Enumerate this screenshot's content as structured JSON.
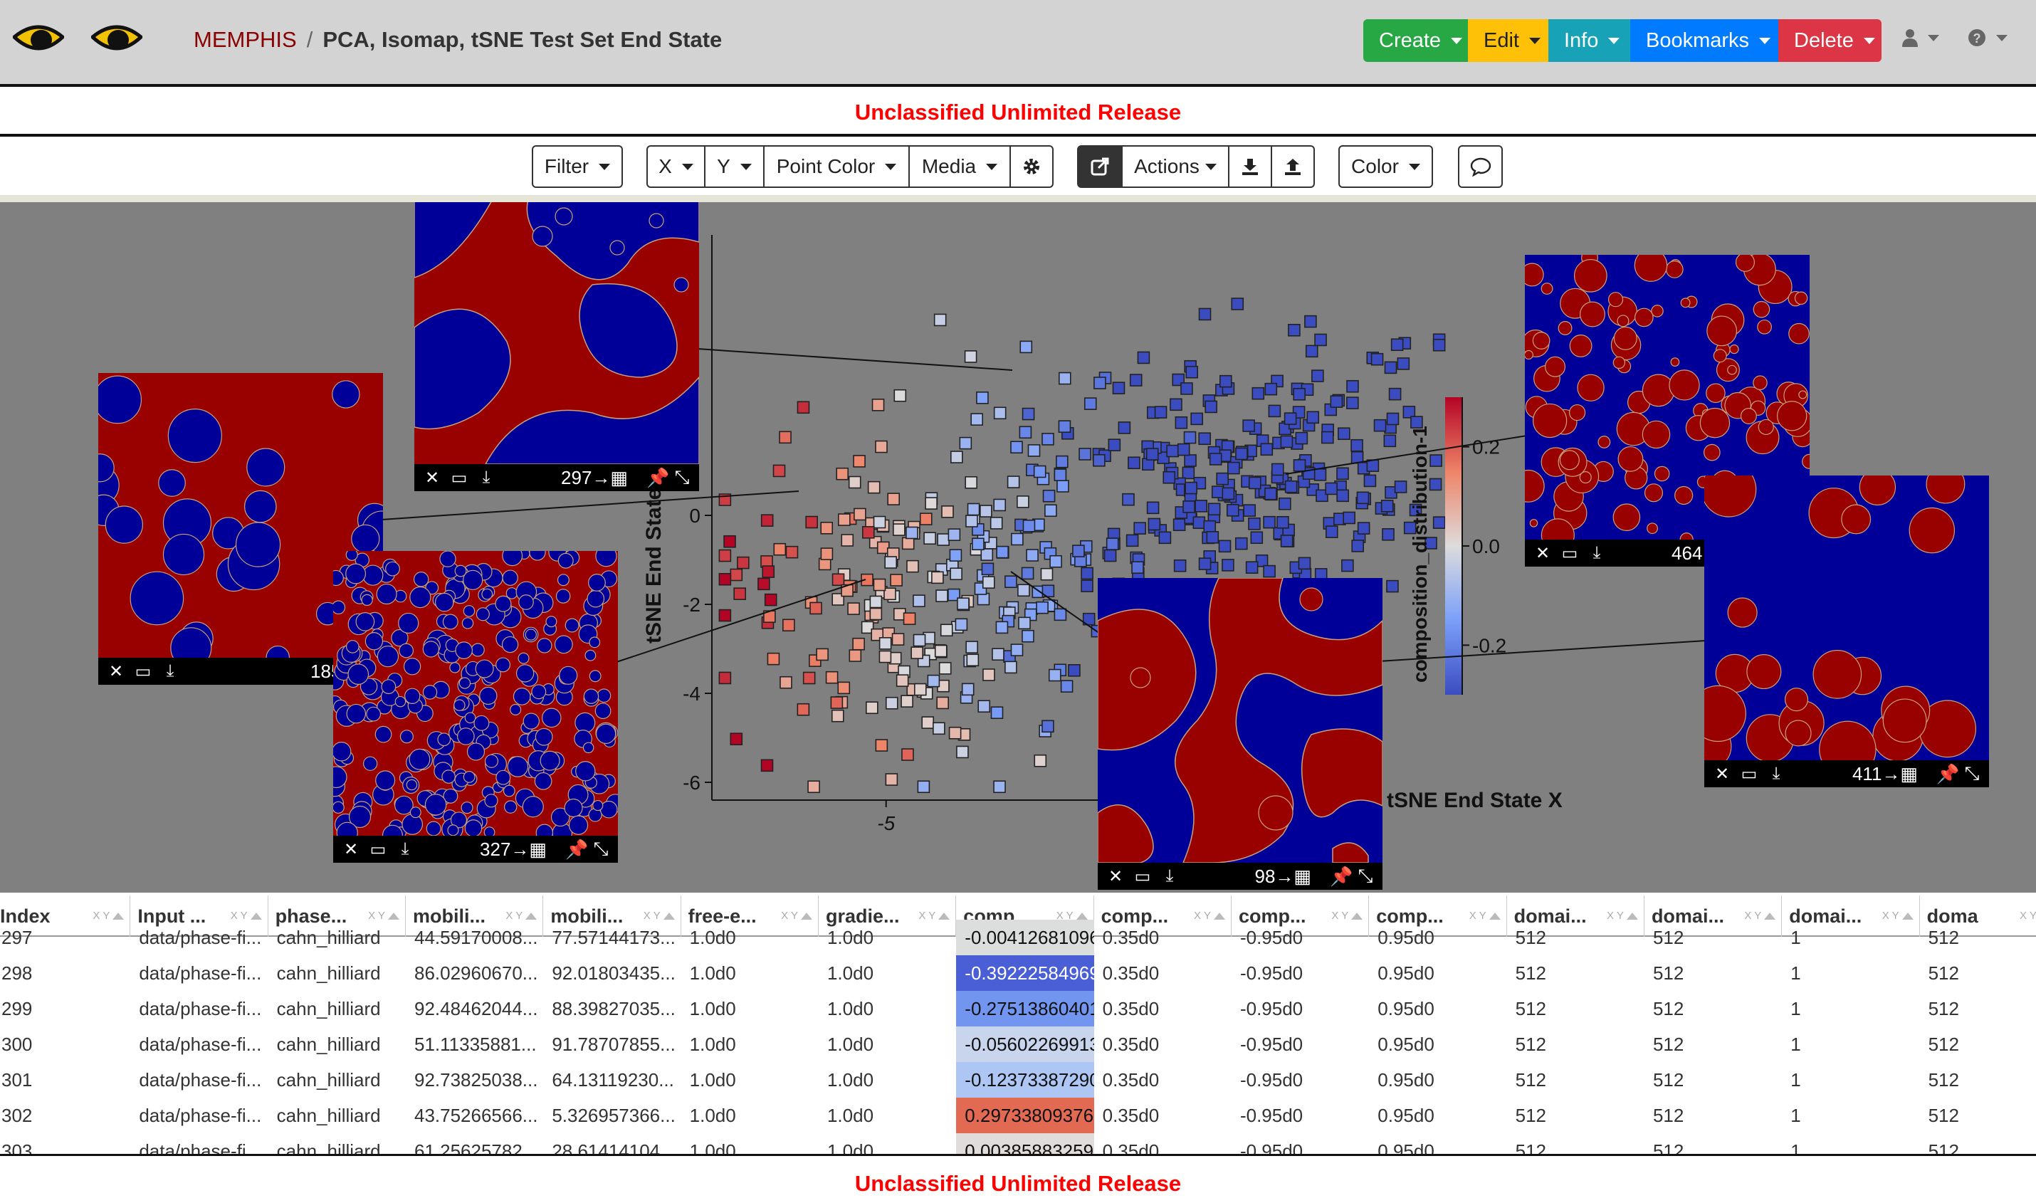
{
  "header": {
    "project": "MEMPHIS",
    "separator": "/",
    "model": "PCA, Isomap, tSNE Test Set End State",
    "buttons": {
      "create": "Create",
      "edit": "Edit",
      "info": "Info",
      "bookmarks": "Bookmarks",
      "delete": "Delete"
    },
    "colors": {
      "create": "#28a745",
      "edit": "#ffc107",
      "info": "#17a2b8",
      "bookmarks": "#007bff",
      "delete": "#dc3545"
    },
    "user_icon": "user-icon",
    "help_icon": "question-circle-icon"
  },
  "banner": {
    "top": "Unclassified Unlimited Release",
    "bottom": "Unclassified Unlimited Release"
  },
  "toolbar": {
    "filter": "Filter",
    "x": "X",
    "y": "Y",
    "point_color": "Point Color",
    "media": "Media",
    "settings_icon": "gear-icon",
    "edit_icon": "external-edit-icon",
    "actions": "Actions",
    "download_icon": "download-icon",
    "upload_icon": "upload-icon",
    "color": "Color",
    "chat_icon": "comment-icon"
  },
  "chart_data": {
    "type": "scatter",
    "xlabel": "tSNE End State X",
    "ylabel": "tSNE End State",
    "colorbar_label": "composition_distribution-1",
    "colorbar_ticks": [
      "0.2",
      "0.0",
      "-0.2"
    ],
    "colorbar_range": [
      -0.3,
      0.3
    ],
    "x_ticks": [
      "-5",
      "0"
    ],
    "y_ticks": [
      "0",
      "-2",
      "-4",
      "-6"
    ],
    "xlim": [
      -9,
      8
    ],
    "ylim": [
      -6.4,
      6.4
    ],
    "colormap": [
      "#3b4cc0",
      "#f7f7f7",
      "#b40426"
    ],
    "point_count": 520
  },
  "media": [
    {
      "index": "297",
      "pattern": "blobs"
    },
    {
      "index": "185",
      "pattern": "circles-medium"
    },
    {
      "index": "327",
      "pattern": "circles-small"
    },
    {
      "index": "98",
      "pattern": "labyrinth"
    },
    {
      "index": "464",
      "pattern": "circles-mixed"
    },
    {
      "index": "411",
      "pattern": "circles-red-on-blue"
    }
  ],
  "media_controls": {
    "close": "✕",
    "minimize": "▭",
    "download": "⤓",
    "pin": "📌",
    "expand": "⤡",
    "table_link": "→▦"
  },
  "table": {
    "columns": [
      "Index",
      "Input ...",
      "phase...",
      "mobili...",
      "mobili...",
      "free-e...",
      "gradie...",
      "comp...",
      "comp...",
      "comp...",
      "comp...",
      "domai...",
      "domai...",
      "domai...",
      "doma"
    ],
    "rows": [
      [
        "297",
        "data/phase-fi...",
        "cahn_hilliard",
        "44.59170008...",
        "77.57144173...",
        "1.0d0",
        "1.0d0",
        "-0.00412681096",
        "0.35d0",
        "-0.95d0",
        "0.95d0",
        "512",
        "512",
        "1",
        "512"
      ],
      [
        "298",
        "data/phase-fi...",
        "cahn_hilliard",
        "86.02960670...",
        "92.01803435...",
        "1.0d0",
        "1.0d0",
        "-0.39222584969",
        "0.35d0",
        "-0.95d0",
        "0.95d0",
        "512",
        "512",
        "1",
        "512"
      ],
      [
        "299",
        "data/phase-fi...",
        "cahn_hilliard",
        "92.48462044...",
        "88.39827035...",
        "1.0d0",
        "1.0d0",
        "-0.27513860401",
        "0.35d0",
        "-0.95d0",
        "0.95d0",
        "512",
        "512",
        "1",
        "512"
      ],
      [
        "300",
        "data/phase-fi...",
        "cahn_hilliard",
        "51.11335881...",
        "91.78707855...",
        "1.0d0",
        "1.0d0",
        "-0.05602269913",
        "0.35d0",
        "-0.95d0",
        "0.95d0",
        "512",
        "512",
        "1",
        "512"
      ],
      [
        "301",
        "data/phase-fi...",
        "cahn_hilliard",
        "92.73825038...",
        "64.13119230...",
        "1.0d0",
        "1.0d0",
        "-0.12373387290",
        "0.35d0",
        "-0.95d0",
        "0.95d0",
        "512",
        "512",
        "1",
        "512"
      ],
      [
        "302",
        "data/phase-fi...",
        "cahn_hilliard",
        "43.75266566...",
        "5.326957366...",
        "1.0d0",
        "1.0d0",
        "0.297338093761",
        "0.35d0",
        "-0.95d0",
        "0.95d0",
        "512",
        "512",
        "1",
        "512"
      ],
      [
        "303",
        "data/phase-fi...",
        "cahn_hilliard",
        "61.25625782...",
        "28.61414104...",
        "1.0d0",
        "1.0d0",
        "0.003858832598",
        "0.35d0",
        "-0.95d0",
        "0.95d0",
        "512",
        "512",
        "1",
        "512"
      ]
    ],
    "highlight_colors": [
      "#dcdddd",
      "#4a5fd6",
      "#7295f0",
      "#c9d5ec",
      "#aec6f4",
      "#e26a53",
      "#e0dcda"
    ]
  }
}
